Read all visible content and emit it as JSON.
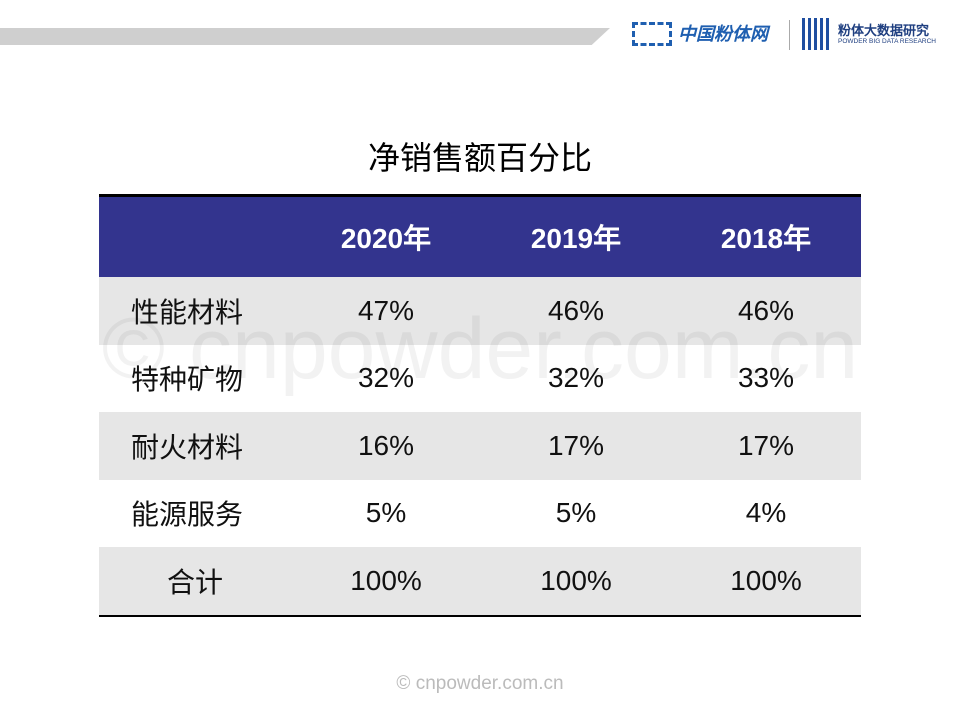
{
  "header": {
    "logo_left": "中国粉体网",
    "logo_right": "粉体大数据研究",
    "logo_right_sub": "POWDER BIG DATA RESEARCH"
  },
  "title": "净销售额百分比",
  "table": {
    "columns": [
      "2020年",
      "2019年",
      "2018年"
    ],
    "rows": [
      [
        "性能材料",
        "47%",
        "46%",
        "46%"
      ],
      [
        "特种矿物",
        "32%",
        "32%",
        "33%"
      ],
      [
        "耐火材料",
        "16%",
        "17%",
        "17%"
      ],
      [
        "能源服务",
        "5%",
        "5%",
        "4%"
      ],
      [
        "合计",
        "100%",
        "100%",
        "100%"
      ]
    ]
  },
  "watermark": "© cnpowder.com.cn",
  "footer": "© cnpowder.com.cn"
}
